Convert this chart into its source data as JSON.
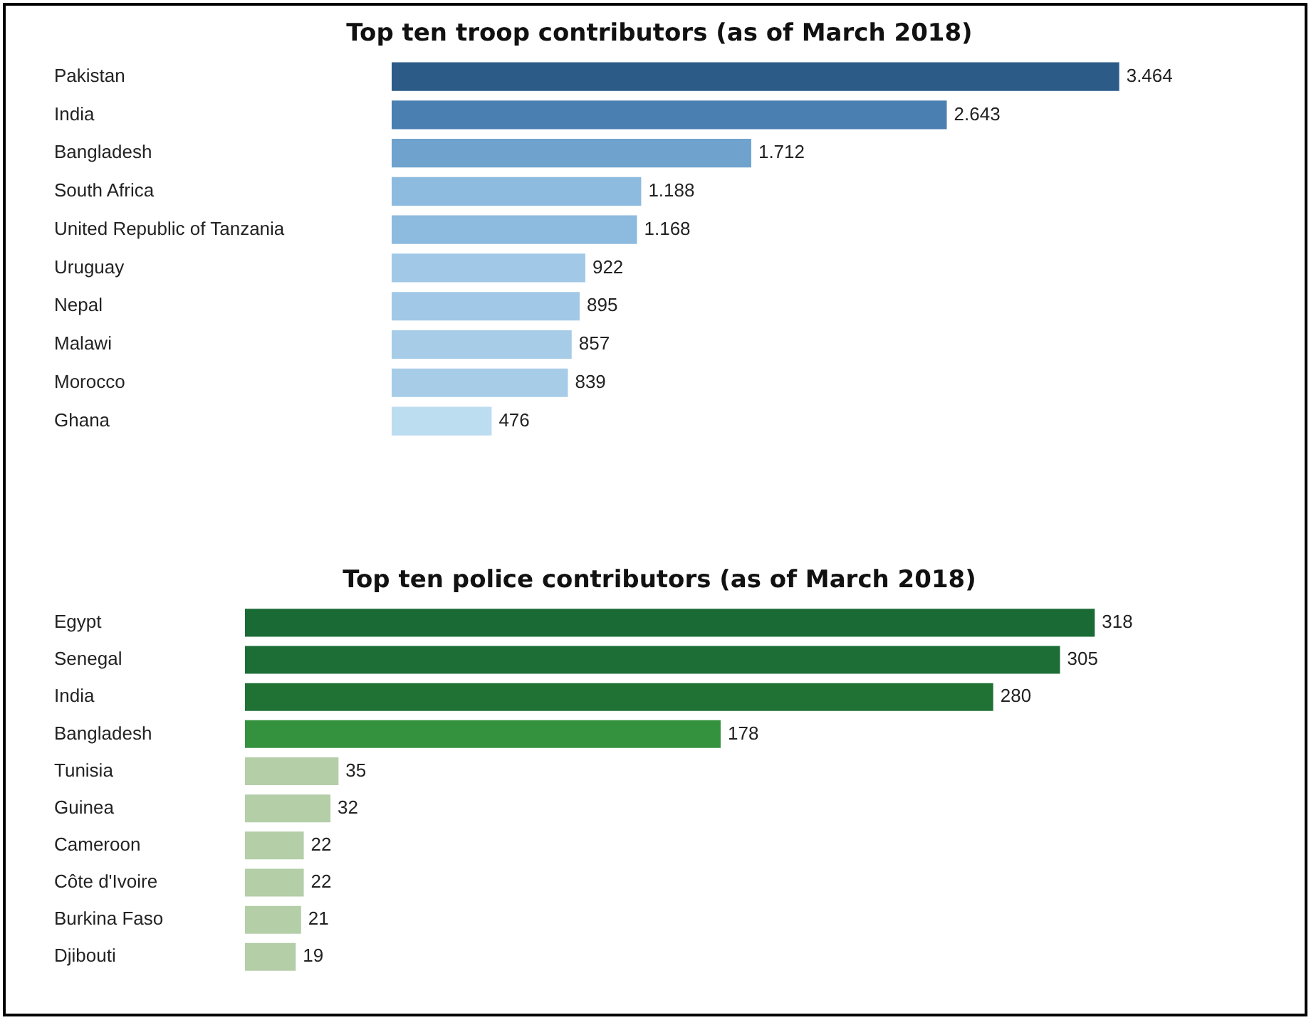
{
  "chart_data": [
    {
      "type": "bar",
      "orientation": "horizontal",
      "title": "Top ten troop contributors (as of March 2018)",
      "categories": [
        "Pakistan",
        "India",
        "Bangladesh",
        "South Africa",
        "United Republic of Tanzania",
        "Uruguay",
        "Nepal",
        "Malawi",
        "Morocco",
        "Ghana"
      ],
      "values": [
        3464,
        2643,
        1712,
        1188,
        1168,
        922,
        895,
        857,
        839,
        476
      ],
      "value_labels": [
        "3.464",
        "2.643",
        "1.712",
        "1.188",
        "1.168",
        "922",
        "895",
        "857",
        "839",
        "476"
      ],
      "colors": [
        "#2d5b88",
        "#4a7fb1",
        "#6fa2cd",
        "#8dbadf",
        "#8dbadf",
        "#a1c8e6",
        "#a1c8e6",
        "#a6cce8",
        "#a6cce8",
        "#bcdcf0"
      ],
      "tick_labels": "y"
    },
    {
      "type": "bar",
      "orientation": "horizontal",
      "title": "Top ten police contributors (as of March 2018)",
      "categories": [
        "Egypt",
        "Senegal",
        "India",
        "Bangladesh",
        "Tunisia",
        "Guinea",
        "Cameroon",
        "Côte d'Ivoire",
        "Burkina Faso",
        "Djibouti"
      ],
      "values": [
        318,
        305,
        280,
        178,
        35,
        32,
        22,
        22,
        21,
        19
      ],
      "data_labels": true,
      "colors": [
        "#1a6a35",
        "#1c6e36",
        "#1f7134",
        "#34923f",
        "#b4cea8",
        "#b4cea8",
        "#b4cea8",
        "#b4cea8",
        "#b4cea8",
        "#b4cea8"
      ],
      "tick_labels": "y"
    }
  ]
}
